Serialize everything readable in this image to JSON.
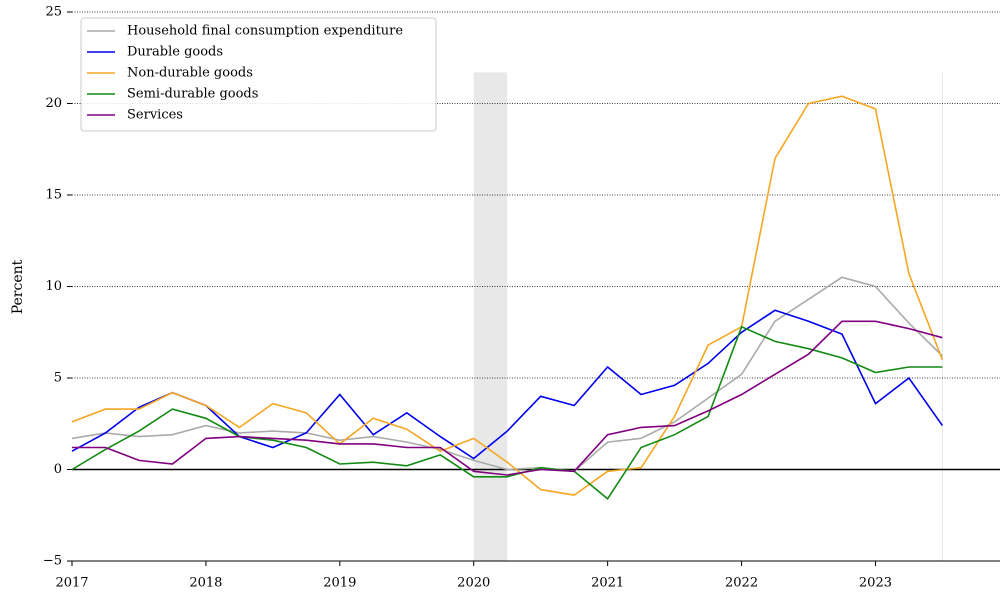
{
  "chart_data": {
    "type": "line",
    "y_label": "Percent",
    "x": [
      2017,
      2017.25,
      2017.5,
      2017.75,
      2018,
      2018.25,
      2018.5,
      2018.75,
      2019,
      2019.25,
      2019.5,
      2019.75,
      2020,
      2020.25,
      2020.5,
      2020.75,
      2021,
      2021.25,
      2021.5,
      2021.75,
      2022,
      2022.25,
      2022.5,
      2022.75,
      2023,
      2023.25,
      2023.5
    ],
    "series": [
      {
        "name": "Household final consumption expenditure",
        "color": "#aaaaaa",
        "values": [
          1.7,
          2.0,
          1.8,
          1.9,
          2.4,
          2.0,
          2.1,
          2.0,
          1.6,
          1.8,
          1.5,
          1.1,
          0.5,
          0.0,
          0.1,
          -0.1,
          1.5,
          1.7,
          2.6,
          3.9,
          5.2,
          8.1,
          9.3,
          10.5,
          10.0,
          8.0,
          6.2
        ]
      },
      {
        "name": "Durable goods",
        "color": "#0000ee",
        "values": [
          1.0,
          2.0,
          3.4,
          4.2,
          3.5,
          1.8,
          1.2,
          2.0,
          4.1,
          1.9,
          3.1,
          1.8,
          0.6,
          2.1,
          4.0,
          3.5,
          5.6,
          4.1,
          4.6,
          5.8,
          7.5,
          8.7,
          8.1,
          7.4,
          3.6,
          5.0,
          2.4
        ]
      },
      {
        "name": "Non-durable goods",
        "color": "#f5a623",
        "values": [
          2.6,
          3.3,
          3.3,
          4.2,
          3.5,
          2.3,
          3.6,
          3.1,
          1.4,
          2.8,
          2.2,
          1.0,
          1.7,
          0.4,
          -1.1,
          -1.4,
          -0.1,
          0.1,
          2.9,
          6.8,
          7.8,
          17.0,
          20.0,
          20.4,
          19.7,
          10.7,
          6.0
        ]
      },
      {
        "name": "Semi-durable goods",
        "color": "#138a13",
        "values": [
          0.0,
          1.1,
          2.1,
          3.3,
          2.8,
          1.8,
          1.6,
          1.2,
          0.3,
          0.4,
          0.2,
          0.8,
          -0.4,
          -0.4,
          0.1,
          -0.1,
          -1.6,
          1.2,
          1.9,
          2.9,
          7.8,
          7.0,
          6.6,
          6.1,
          5.3,
          5.6,
          5.6
        ]
      },
      {
        "name": "Services",
        "color": "#800080",
        "values": [
          1.2,
          1.2,
          0.5,
          0.3,
          1.7,
          1.8,
          1.7,
          1.6,
          1.4,
          1.4,
          1.2,
          1.2,
          -0.1,
          -0.3,
          0.0,
          -0.1,
          1.9,
          2.3,
          2.4,
          3.2,
          4.1,
          5.2,
          6.3,
          8.1,
          8.1,
          7.7,
          7.2
        ]
      }
    ],
    "xlim": [
      2017,
      2023.93
    ],
    "xticks": [
      2017,
      2018,
      2019,
      2020,
      2021,
      2022,
      2023
    ],
    "ylim": [
      -5,
      25
    ],
    "yticks": [
      {
        "value": -5,
        "label": "−5"
      },
      0,
      5,
      10,
      15,
      20,
      25
    ],
    "grid": true,
    "zero_line": 0,
    "shaded": {
      "x0": 2020,
      "x1": 2020.25,
      "top": 21.7
    },
    "vline": 2023.5,
    "legend": "upper left"
  }
}
